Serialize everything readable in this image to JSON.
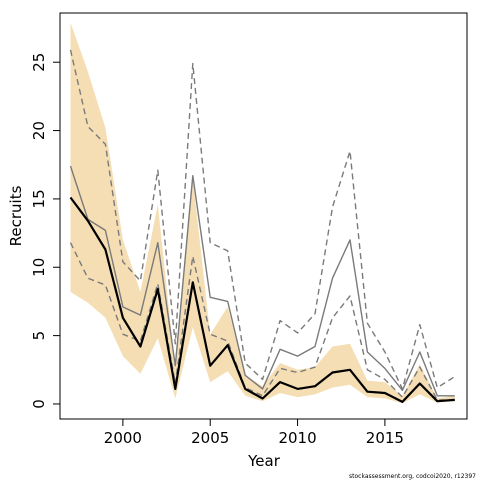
{
  "chart_data": {
    "type": "line",
    "title": "",
    "xlabel": "Year",
    "ylabel": "Recruits",
    "xlim": [
      1996.4,
      2019.7
    ],
    "ylim": [
      -1.1,
      28.6
    ],
    "xticks": [
      2000,
      2005,
      2010,
      2015
    ],
    "yticks": [
      0,
      5,
      10,
      15,
      20,
      25
    ],
    "grid": false,
    "legend": "none",
    "x": [
      1997,
      1998,
      1999,
      2000,
      2001,
      2002,
      2003,
      2004,
      2005,
      2006,
      2007,
      2008,
      2009,
      2010,
      2011,
      2012,
      2013,
      2014,
      2015,
      2016,
      2017,
      2018,
      2019
    ],
    "band": {
      "color": "#f5deb3",
      "lower": [
        8.2,
        7.4,
        6.3,
        3.5,
        2.2,
        4.8,
        0.4,
        5.6,
        1.6,
        2.4,
        0.6,
        0.2,
        0.8,
        0.5,
        0.7,
        1.2,
        1.4,
        0.5,
        0.4,
        0.05,
        0.7,
        0.1,
        0.2
      ],
      "upper": [
        27.9,
        24.3,
        20.2,
        12.0,
        8.2,
        14.6,
        2.6,
        16.5,
        5.1,
        7.1,
        2.1,
        1.3,
        3.0,
        2.5,
        2.7,
        4.2,
        4.4,
        1.7,
        1.6,
        0.6,
        2.9,
        0.4,
        0.6
      ]
    },
    "series": [
      {
        "color": "#000000",
        "style": "solid",
        "values": [
          15.1,
          13.4,
          11.3,
          6.3,
          4.2,
          8.4,
          1.1,
          8.9,
          2.8,
          4.3,
          1.1,
          0.4,
          1.6,
          1.1,
          1.3,
          2.3,
          2.5,
          0.9,
          0.8,
          0.15,
          1.5,
          0.2,
          0.3
        ]
      },
      {
        "color": "#7a7a7a",
        "style": "solid",
        "values": [
          17.4,
          13.5,
          12.7,
          7.1,
          6.5,
          11.8,
          2.8,
          16.7,
          7.8,
          7.5,
          2.1,
          1.1,
          4.0,
          3.5,
          4.2,
          9.2,
          12.0,
          3.8,
          2.6,
          1.0,
          3.8,
          0.6,
          0.6
        ]
      },
      {
        "color": "#7a7a7a",
        "style": "dashed",
        "values": [
          25.9,
          20.3,
          19.0,
          10.4,
          9.0,
          17.1,
          4.4,
          24.9,
          11.8,
          11.2,
          3.0,
          1.8,
          6.1,
          5.2,
          6.6,
          14.4,
          18.5,
          5.9,
          3.8,
          1.1,
          5.8,
          1.2,
          2.0
        ]
      },
      {
        "color": "#7a7a7a",
        "style": "dashed",
        "values": [
          11.8,
          9.2,
          8.7,
          5.1,
          4.6,
          8.8,
          1.5,
          10.8,
          5.1,
          4.6,
          1.2,
          0.6,
          2.6,
          2.3,
          2.7,
          6.3,
          7.9,
          2.5,
          1.8,
          0.5,
          2.7,
          0.3,
          0.3
        ]
      }
    ]
  },
  "footer": "stockassessment.org, codcoi2020, r12397"
}
